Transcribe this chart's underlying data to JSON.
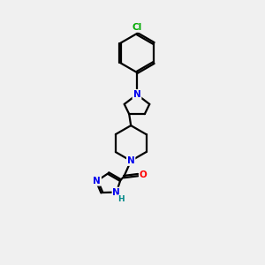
{
  "background_color": "#f0f0f0",
  "bond_color": "#000000",
  "atom_colors": {
    "N": "#0000ee",
    "O": "#ff0000",
    "Cl": "#00aa00",
    "H": "#008888",
    "C": "#000000"
  },
  "line_width": 1.6,
  "figsize": [
    3.0,
    3.0
  ],
  "dpi": 100
}
